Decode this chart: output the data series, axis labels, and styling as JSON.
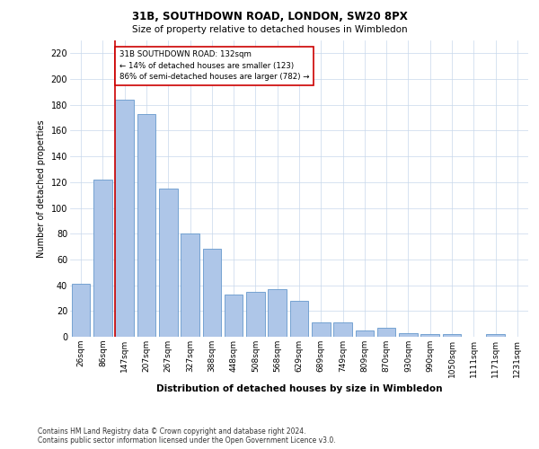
{
  "title": "31B, SOUTHDOWN ROAD, LONDON, SW20 8PX",
  "subtitle": "Size of property relative to detached houses in Wimbledon",
  "xlabel": "Distribution of detached houses by size in Wimbledon",
  "ylabel": "Number of detached properties",
  "bar_color": "#aec6e8",
  "bar_edge_color": "#6699cc",
  "grid_color": "#c8d8eb",
  "background_color": "#ffffff",
  "annotation_box_color": "#cc0000",
  "annotation_line_color": "#cc0000",
  "annotation_text": "31B SOUTHDOWN ROAD: 132sqm\n← 14% of detached houses are smaller (123)\n86% of semi-detached houses are larger (782) →",
  "property_bin_index": 2,
  "categories": [
    "26sqm",
    "86sqm",
    "147sqm",
    "207sqm",
    "267sqm",
    "327sqm",
    "388sqm",
    "448sqm",
    "508sqm",
    "568sqm",
    "629sqm",
    "689sqm",
    "749sqm",
    "809sqm",
    "870sqm",
    "930sqm",
    "990sqm",
    "1050sqm",
    "1111sqm",
    "1171sqm",
    "1231sqm"
  ],
  "values": [
    41,
    122,
    184,
    173,
    115,
    80,
    68,
    33,
    35,
    37,
    28,
    11,
    11,
    5,
    7,
    3,
    2,
    2,
    0,
    2,
    0
  ],
  "ylim": [
    0,
    230
  ],
  "yticks": [
    0,
    20,
    40,
    60,
    80,
    100,
    120,
    140,
    160,
    180,
    200,
    220
  ],
  "footnote": "Contains HM Land Registry data © Crown copyright and database right 2024.\nContains public sector information licensed under the Open Government Licence v3.0."
}
